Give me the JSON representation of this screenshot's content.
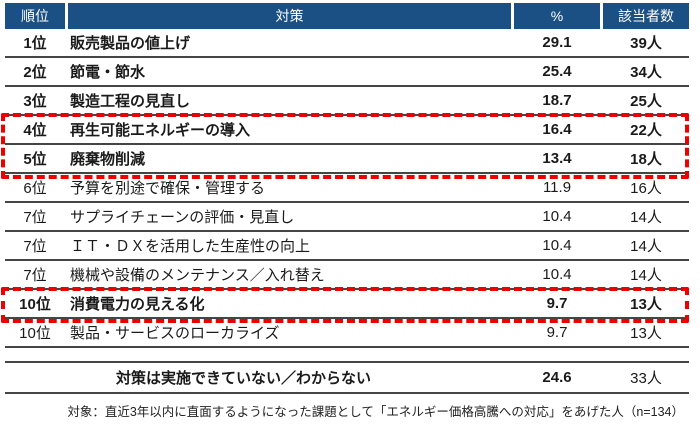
{
  "table": {
    "headers": {
      "rank": "順位",
      "measure": "対策",
      "percent": "%",
      "count": "該当者数"
    },
    "rows": [
      {
        "rank": "1位",
        "measure": "販売製品の値上げ",
        "percent": "29.1",
        "count": "39人",
        "bold": true,
        "highlighted": false
      },
      {
        "rank": "2位",
        "measure": "節電・節水",
        "percent": "25.4",
        "count": "34人",
        "bold": true,
        "highlighted": false
      },
      {
        "rank": "3位",
        "measure": "製造工程の見直し",
        "percent": "18.7",
        "count": "25人",
        "bold": true,
        "highlighted": false
      },
      {
        "rank": "4位",
        "measure": "再生可能エネルギーの導入",
        "percent": "16.4",
        "count": "22人",
        "bold": true,
        "highlighted": true
      },
      {
        "rank": "5位",
        "measure": "廃棄物削減",
        "percent": "13.4",
        "count": "18人",
        "bold": true,
        "highlighted": true
      },
      {
        "rank": "6位",
        "measure": "予算を別途で確保・管理する",
        "percent": "11.9",
        "count": "16人",
        "bold": false,
        "highlighted": false
      },
      {
        "rank": "7位",
        "measure": "サプライチェーンの評価・見直し",
        "percent": "10.4",
        "count": "14人",
        "bold": false,
        "highlighted": false
      },
      {
        "rank": "7位",
        "measure": "ＩＴ・ＤＸを活用した生産性の向上",
        "percent": "10.4",
        "count": "14人",
        "bold": false,
        "highlighted": false
      },
      {
        "rank": "7位",
        "measure": "機械や設備のメンテナンス／入れ替え",
        "percent": "10.4",
        "count": "14人",
        "bold": false,
        "highlighted": false
      },
      {
        "rank": "10位",
        "measure": "消費電力の見える化",
        "percent": "9.7",
        "count": "13人",
        "bold": true,
        "highlighted": true
      },
      {
        "rank": "10位",
        "measure": "製品・サービスのローカライズ",
        "percent": "9.7",
        "count": "13人",
        "bold": false,
        "highlighted": false
      }
    ],
    "summary_row": {
      "measure": "対策は実施できていない／わからない",
      "percent": "24.6",
      "count": "33人"
    },
    "footnote": "対象：直近3年以内に直面するようになった課題として「エネルギー価格高騰への対応」をあげた人（n=134）"
  },
  "colors": {
    "header_bg": "#1b5084",
    "header_text": "#ffffff",
    "row_border": "#454545",
    "highlight_border": "#ec0000"
  },
  "chart_data": {
    "type": "table",
    "title": "",
    "columns": [
      "順位",
      "対策",
      "%",
      "該当者数"
    ],
    "categories": [
      "販売製品の値上げ",
      "節電・節水",
      "製造工程の見直し",
      "再生可能エネルギーの導入",
      "廃棄物削減",
      "予算を別途で確保・管理する",
      "サプライチェーンの評価・見直し",
      "ＩＴ・ＤＸを活用した生産性の向上",
      "機械や設備のメンテナンス／入れ替え",
      "消費電力の見える化",
      "製品・サービスのローカライズ",
      "対策は実施できていない／わからない"
    ],
    "ranks": [
      "1位",
      "2位",
      "3位",
      "4位",
      "5位",
      "6位",
      "7位",
      "7位",
      "7位",
      "10位",
      "10位",
      ""
    ],
    "series": [
      {
        "name": "%",
        "values": [
          29.1,
          25.4,
          18.7,
          16.4,
          13.4,
          11.9,
          10.4,
          10.4,
          10.4,
          9.7,
          9.7,
          24.6
        ]
      },
      {
        "name": "該当者数",
        "values": [
          39,
          34,
          25,
          22,
          18,
          16,
          14,
          14,
          14,
          13,
          13,
          33
        ]
      }
    ],
    "highlighted_rows": [
      "再生可能エネルギーの導入",
      "廃棄物削減",
      "消費電力の見える化"
    ],
    "sample_note": "n=134"
  }
}
